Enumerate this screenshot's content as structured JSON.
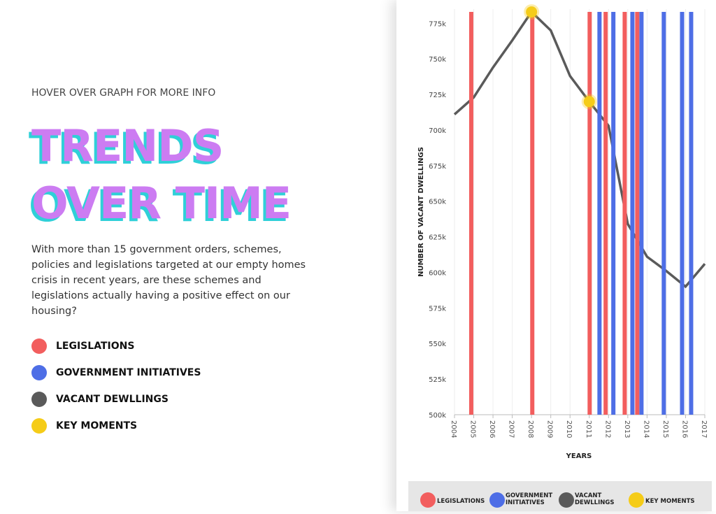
{
  "header": {
    "hint": "HOVER OVER GRAPH FOR MORE INFO",
    "title": [
      "TRENDS",
      "OVER TIME"
    ],
    "intro": "With more than 15 government orders, schemes, policies and legislations targeted at our empty homes crisis in recent years, are these schemes and legislations actually having a positive effect on our housing?"
  },
  "chart_data": {
    "type": "line",
    "x_label": "YEARS",
    "y_label": "NUMBER OF VACANT DWELLINGS",
    "xlim": [
      2004,
      2017
    ],
    "xticks": [
      2004,
      2005,
      2006,
      2007,
      2008,
      2009,
      2010,
      2011,
      2012,
      2013,
      2014,
      2015,
      2016,
      2017
    ],
    "ylim": [
      500000,
      785000
    ],
    "yticks": [
      {
        "value": 500000,
        "label": "500k"
      },
      {
        "value": 525000,
        "label": "525k"
      },
      {
        "value": 550000,
        "label": "550k"
      },
      {
        "value": 575000,
        "label": "575k"
      },
      {
        "value": 600000,
        "label": "600k"
      },
      {
        "value": 625000,
        "label": "625k"
      },
      {
        "value": 650000,
        "label": "650k"
      },
      {
        "value": 675000,
        "label": "675k"
      },
      {
        "value": 700000,
        "label": "700k"
      },
      {
        "value": 725000,
        "label": "725k"
      },
      {
        "value": 750000,
        "label": "750k"
      },
      {
        "value": 775000,
        "label": "775k"
      }
    ],
    "grid": true,
    "series": [
      {
        "name": "LEGISLATIONS",
        "type": "vline",
        "color": "#f25e5e",
        "x": [
          2004.87,
          2008.04,
          2011.02,
          2011.85,
          2012.84,
          2013.49
        ]
      },
      {
        "name": "GOVERNMENT INITIATIVES",
        "type": "vline",
        "color": "#4e6ee6",
        "x": [
          2011.53,
          2012.25,
          2013.24,
          2013.71,
          2014.87,
          2015.82,
          2016.29
        ]
      },
      {
        "name": "VACANT DEWLLINGS",
        "type": "line",
        "color": "#5a5a5a",
        "x": [
          2004,
          2005,
          2006,
          2007,
          2008,
          2009,
          2010,
          2011,
          2012,
          2013,
          2014,
          2015,
          2016,
          2017
        ],
        "values": [
          711000,
          723000,
          744000,
          763000,
          783000,
          770000,
          738000,
          720000,
          703000,
          634000,
          611000,
          601000,
          590000,
          606000
        ]
      },
      {
        "name": "KEY MOMENTS",
        "type": "scatter",
        "color": "#f5cc18",
        "x": [
          2008,
          2011
        ],
        "values": [
          783000,
          720000
        ]
      }
    ]
  }
}
